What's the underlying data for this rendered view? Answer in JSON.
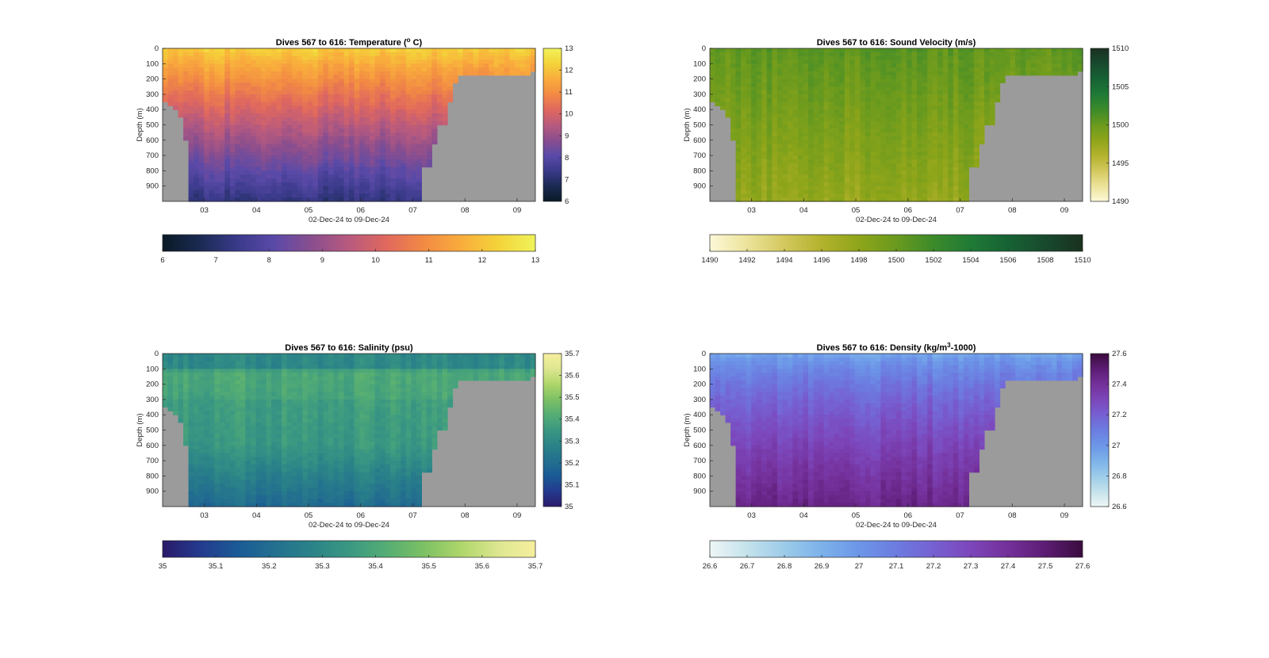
{
  "chart_data": [
    {
      "type": "heatmap",
      "title": "Dives 567 to 616: Temperature (",
      "title_sup": "o",
      "title_end": " C)",
      "xlabel": "02-Dec-24 to 09-Dec-24",
      "ylabel": "Depth (m)",
      "x_ticks": [
        "03",
        "04",
        "05",
        "06",
        "07",
        "08",
        "09"
      ],
      "y_ticks": [
        "0",
        "100",
        "200",
        "300",
        "400",
        "500",
        "600",
        "700",
        "800",
        "900"
      ],
      "xlim_days": [
        2.2,
        9.35
      ],
      "ylim": [
        0,
        1000
      ],
      "clim": [
        6,
        13
      ],
      "colorbar_ticks": [
        "6",
        "7",
        "8",
        "9",
        "10",
        "11",
        "12",
        "13"
      ],
      "h_colorbar_ticks": [
        "6",
        "7",
        "8",
        "9",
        "10",
        "11",
        "12",
        "13"
      ],
      "colormap": [
        "#0a1a26",
        "#1a2a52",
        "#3a3a8a",
        "#5a4aa8",
        "#8a4e8e",
        "#b85a7e",
        "#e0685e",
        "#f28a44",
        "#f9ac3c",
        "#f4d33a",
        "#f0f35a"
      ],
      "no_data_color": "#9b9b9b",
      "profile_surface_value": 12.2,
      "profile_deep_value": 7.2
    },
    {
      "type": "heatmap",
      "title": "Dives 567 to 616: Sound Velocity (m/s)",
      "xlabel": "02-Dec-24 to 09-Dec-24",
      "ylabel": "Depth (m)",
      "x_ticks": [
        "03",
        "04",
        "05",
        "06",
        "07",
        "08",
        "09"
      ],
      "y_ticks": [
        "0",
        "100",
        "200",
        "300",
        "400",
        "500",
        "600",
        "700",
        "800",
        "900"
      ],
      "xlim_days": [
        2.2,
        9.35
      ],
      "ylim": [
        0,
        1000
      ],
      "clim": [
        1490,
        1510
      ],
      "colorbar_ticks": [
        "1490",
        "1495",
        "1500",
        "1505",
        "1510"
      ],
      "h_colorbar_ticks": [
        "1490",
        "1492",
        "1494",
        "1496",
        "1498",
        "1500",
        "1502",
        "1504",
        "1506",
        "1508",
        "1510"
      ],
      "colormap": [
        "#fdf8d8",
        "#ece39a",
        "#d3c85e",
        "#b3b22c",
        "#8ea51a",
        "#6a9a1e",
        "#3c8a2a",
        "#1f7a36",
        "#176234",
        "#184a2e",
        "#1a3020"
      ],
      "no_data_color": "#9b9b9b",
      "profile_surface_value": 1500.5,
      "profile_deep_value": 1497.5
    },
    {
      "type": "heatmap",
      "title": "Dives 567 to 616: Salinity (psu)",
      "xlabel": "02-Dec-24 to 09-Dec-24",
      "ylabel": "Depth (m)",
      "x_ticks": [
        "03",
        "04",
        "05",
        "06",
        "07",
        "08",
        "09"
      ],
      "y_ticks": [
        "0",
        "100",
        "200",
        "300",
        "400",
        "500",
        "600",
        "700",
        "800",
        "900"
      ],
      "xlim_days": [
        2.2,
        9.35
      ],
      "ylim": [
        0,
        1000
      ],
      "clim": [
        35,
        35.7
      ],
      "colorbar_ticks": [
        "35",
        "35.1",
        "35.2",
        "35.3",
        "35.4",
        "35.5",
        "35.6",
        "35.7"
      ],
      "h_colorbar_ticks": [
        "35",
        "35.1",
        "35.2",
        "35.3",
        "35.4",
        "35.5",
        "35.6",
        "35.7"
      ],
      "colormap": [
        "#2a1a6a",
        "#243a8e",
        "#1a5a96",
        "#23708f",
        "#2b8388",
        "#3a9882",
        "#54ad74",
        "#7cc064",
        "#aed66a",
        "#dde690",
        "#f6ef9e"
      ],
      "no_data_color": "#9b9b9b",
      "profile_surface_value": 35.3,
      "profile_deep_value": 35.22
    },
    {
      "type": "heatmap",
      "title": "Dives 567 to 616: Density (kg/m",
      "title_sup": "3",
      "title_end": "-1000)",
      "xlabel": "02-Dec-24 to 09-Dec-24",
      "ylabel": "Depth (m)",
      "x_ticks": [
        "03",
        "04",
        "05",
        "06",
        "07",
        "08",
        "09"
      ],
      "y_ticks": [
        "0",
        "100",
        "200",
        "300",
        "400",
        "500",
        "600",
        "700",
        "800",
        "900"
      ],
      "xlim_days": [
        2.2,
        9.35
      ],
      "ylim": [
        0,
        1000
      ],
      "clim": [
        26.6,
        27.6
      ],
      "colorbar_ticks": [
        "26.6",
        "26.8",
        "27",
        "27.2",
        "27.4",
        "27.6"
      ],
      "h_colorbar_ticks": [
        "26.6",
        "26.7",
        "26.8",
        "26.9",
        "27",
        "27.1",
        "27.2",
        "27.3",
        "27.4",
        "27.5",
        "27.6"
      ],
      "colormap": [
        "#eef6f6",
        "#c4e2ec",
        "#9ccbe9",
        "#7cb2ea",
        "#6c96e8",
        "#6c7ce0",
        "#7660d2",
        "#7c46ba",
        "#74309a",
        "#5c1c74",
        "#3a0c3e"
      ],
      "no_data_color": "#9b9b9b",
      "profile_surface_value": 26.92,
      "profile_deep_value": 27.45
    }
  ]
}
